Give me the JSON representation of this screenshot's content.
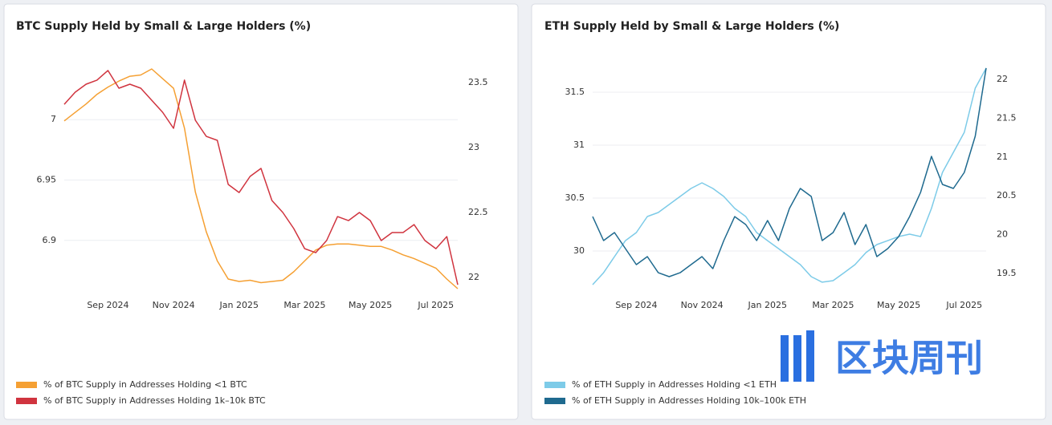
{
  "chart_data": [
    {
      "type": "line",
      "title": "BTC Supply Held by Small & Large Holders (%)",
      "categories": [
        null,
        null,
        null,
        null,
        "Sep 2024",
        null,
        null,
        null,
        null,
        null,
        "Nov 2024",
        null,
        null,
        null,
        null,
        null,
        "Jan 2025",
        null,
        null,
        null,
        null,
        null,
        "Mar 2025",
        null,
        null,
        null,
        null,
        null,
        "May 2025",
        null,
        null,
        null,
        null,
        null,
        "Jul 2025",
        null,
        null
      ],
      "series": [
        {
          "name": "% of BTC Supply in Addresses Holding <1 BTC",
          "color": "#f5a033",
          "axis": "y",
          "values": [
            6.999,
            7.006,
            7.013,
            7.021,
            7.027,
            7.032,
            7.036,
            7.037,
            7.042,
            7.034,
            7.026,
            6.993,
            6.94,
            6.907,
            6.883,
            6.868,
            6.866,
            6.867,
            6.865,
            6.866,
            6.867,
            6.874,
            6.883,
            6.892,
            6.896,
            6.897,
            6.897,
            6.896,
            6.895,
            6.895,
            6.892,
            6.888,
            6.885,
            6.881,
            6.877,
            6.868,
            6.86
          ]
        },
        {
          "name": "% of BTC Supply in Addresses Holding 1k–10k BTC",
          "color": "#d0343f",
          "axis": "y2",
          "values": [
            23.333,
            23.426,
            23.488,
            23.519,
            23.593,
            23.457,
            23.488,
            23.457,
            23.364,
            23.272,
            23.148,
            23.519,
            23.21,
            23.086,
            23.056,
            22.716,
            22.654,
            22.778,
            22.84,
            22.593,
            22.5,
            22.377,
            22.222,
            22.191,
            22.284,
            22.469,
            22.438,
            22.5,
            22.438,
            22.284,
            22.346,
            22.346,
            22.407,
            22.284,
            22.222,
            22.315,
            21.944
          ]
        }
      ],
      "ylim": [
        6.86,
        7.046
      ],
      "yticks": [
        6.9,
        6.95,
        7
      ],
      "y2lim": [
        21.914,
        23.642
      ],
      "y2ticks": [
        22,
        22.5,
        23,
        23.5
      ],
      "grid": true,
      "legend": "bottom-left"
    },
    {
      "type": "line",
      "title": "ETH Supply Held by Small & Large Holders (%)",
      "categories": [
        null,
        null,
        null,
        null,
        "Sep 2024",
        null,
        null,
        null,
        null,
        null,
        "Nov 2024",
        null,
        null,
        null,
        null,
        null,
        "Jan 2025",
        null,
        null,
        null,
        null,
        null,
        "Mar 2025",
        null,
        null,
        null,
        null,
        null,
        "May 2025",
        null,
        null,
        null,
        null,
        null,
        "Jul 2025",
        null,
        null
      ],
      "series": [
        {
          "name": "% of ETH Supply in Addresses Holding <1 ETH",
          "color": "#7dcbe8",
          "axis": "y",
          "values": [
            29.682,
            29.795,
            29.947,
            30.098,
            30.174,
            30.326,
            30.364,
            30.439,
            30.515,
            30.591,
            30.644,
            30.591,
            30.515,
            30.402,
            30.326,
            30.174,
            30.098,
            30.023,
            29.947,
            29.871,
            29.758,
            29.705,
            29.72,
            29.795,
            29.871,
            29.985,
            30.061,
            30.098,
            30.136,
            30.159,
            30.136,
            30.402,
            30.742,
            30.932,
            31.121,
            31.538,
            31.727
          ]
        },
        {
          "name": "% of ETH Supply in Addresses Holding 10k–100k ETH",
          "color": "#1f6a8f",
          "axis": "y2",
          "values": [
            20.233,
            19.924,
            20.027,
            19.82,
            19.614,
            19.717,
            19.51,
            19.459,
            19.51,
            19.614,
            19.717,
            19.562,
            19.924,
            20.233,
            20.13,
            19.924,
            20.182,
            19.924,
            20.337,
            20.595,
            20.492,
            19.924,
            20.027,
            20.285,
            19.872,
            20.13,
            19.717,
            19.82,
            19.975,
            20.233,
            20.543,
            21.008,
            20.647,
            20.595,
            20.802,
            21.267,
            22.145
          ]
        }
      ],
      "ylim": [
        29.644,
        31.765
      ],
      "yticks": [
        30,
        30.5,
        31,
        31.5
      ],
      "y2lim": [
        19.304,
        22.196
      ],
      "y2ticks": [
        19.5,
        20,
        20.5,
        21,
        21.5,
        22
      ],
      "grid": true,
      "legend": "bottom-left"
    }
  ],
  "watermark": "区块周刊"
}
